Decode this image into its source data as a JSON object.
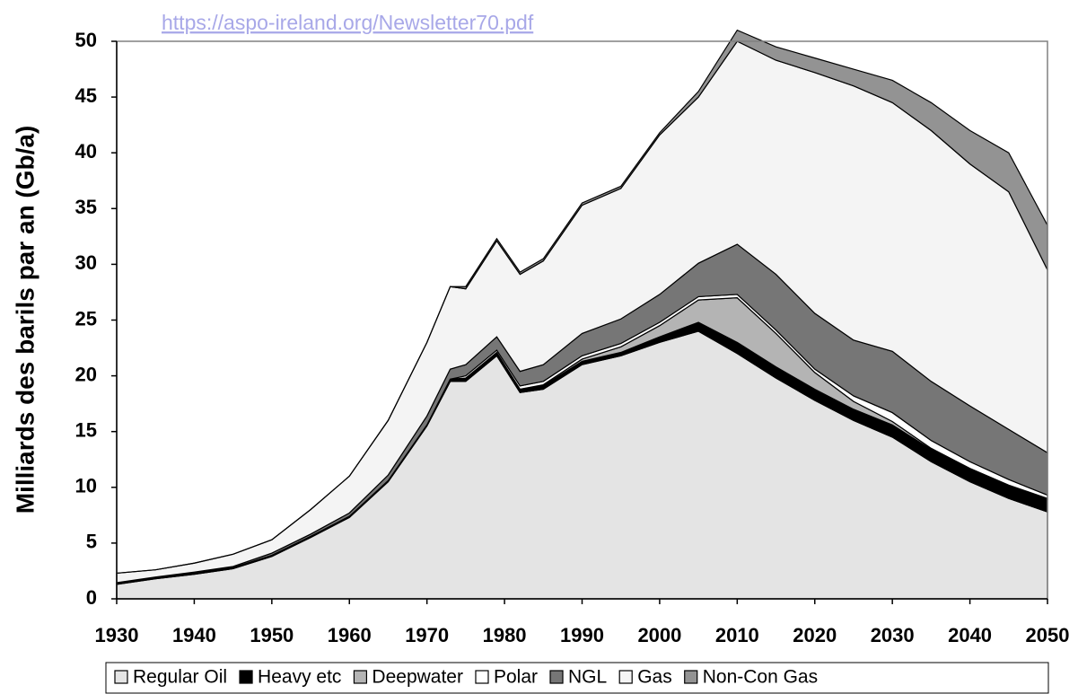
{
  "chart_data": {
    "type": "stacked_area",
    "source_link": "https://aspo-ireland.org/Newsletter70.pdf",
    "ylabel": "Milliards des barils par an (Gb/a)",
    "x": [
      1930,
      1935,
      1940,
      1945,
      1950,
      1955,
      1960,
      1965,
      1970,
      1973,
      1975,
      1979,
      1982,
      1985,
      1990,
      1995,
      2000,
      2005,
      2010,
      2015,
      2020,
      2025,
      2030,
      2035,
      2040,
      2045,
      2050
    ],
    "xlim": [
      1930,
      2050
    ],
    "xticks": [
      1930,
      1940,
      1950,
      1960,
      1970,
      1980,
      1990,
      2000,
      2010,
      2020,
      2030,
      2040,
      2050
    ],
    "ylim": [
      0,
      50
    ],
    "yticks": [
      0,
      5,
      10,
      15,
      20,
      25,
      30,
      35,
      40,
      45,
      50
    ],
    "grid": false,
    "legend": "bottom",
    "series": [
      {
        "name": "Regular Oil",
        "color": "#e4e4e4",
        "values": [
          1.3,
          1.8,
          2.2,
          2.7,
          3.8,
          5.5,
          7.3,
          10.5,
          15.5,
          19.5,
          19.5,
          21.8,
          18.5,
          18.8,
          21,
          21.8,
          23,
          24,
          22,
          19.8,
          17.8,
          16,
          14.5,
          12.3,
          10.5,
          9,
          7.8
        ]
      },
      {
        "name": "Heavy etc",
        "color": "#000000",
        "values": [
          0.1,
          0.1,
          0.1,
          0.1,
          0.1,
          0.1,
          0.1,
          0.1,
          0.1,
          0.2,
          0.3,
          0.3,
          0.3,
          0.3,
          0.3,
          0.3,
          0.5,
          0.8,
          1,
          1,
          1,
          1,
          1.1,
          1.1,
          1.1,
          1.1,
          1.1
        ]
      },
      {
        "name": "Deepwater",
        "color": "#b4b4b4",
        "values": [
          0,
          0,
          0,
          0,
          0,
          0,
          0,
          0,
          0,
          0,
          0,
          0,
          0,
          0.1,
          0.2,
          0.5,
          1,
          2,
          4,
          3,
          1.5,
          0.7,
          0.3,
          0.1,
          0.1,
          0.1,
          0.1
        ]
      },
      {
        "name": "Polar",
        "color": "#ffffff",
        "values": [
          0,
          0,
          0,
          0,
          0,
          0,
          0,
          0,
          0,
          0,
          0.2,
          0.2,
          0.3,
          0.3,
          0.3,
          0.3,
          0.3,
          0.3,
          0.3,
          0.3,
          0.3,
          0.5,
          0.8,
          0.7,
          0.6,
          0.5,
          0.3
        ]
      },
      {
        "name": "NGL",
        "color": "#767676",
        "values": [
          0.05,
          0.05,
          0.1,
          0.1,
          0.2,
          0.2,
          0.3,
          0.5,
          0.8,
          0.9,
          1,
          1.2,
          1.3,
          1.5,
          2,
          2.2,
          2.5,
          3,
          4.5,
          5,
          5,
          5,
          5.5,
          5.3,
          5,
          4.5,
          3.8
        ]
      },
      {
        "name": "Gas",
        "color": "#f4f4f4",
        "values": [
          0.85,
          0.65,
          0.8,
          1.1,
          1.2,
          2.2,
          3.3,
          4.9,
          6.6,
          7.4,
          6.8,
          8.6,
          8.7,
          9.3,
          11.5,
          11.7,
          14.3,
          14.9,
          18.2,
          19.2,
          21.6,
          22.8,
          22.3,
          22.5,
          21.7,
          21.3,
          16.4
        ]
      },
      {
        "name": "Non-Con Gas",
        "color": "#939393",
        "values": [
          0,
          0,
          0,
          0,
          0,
          0,
          0,
          0,
          0,
          0,
          0.2,
          0.2,
          0.2,
          0.2,
          0.2,
          0.2,
          0.2,
          0.5,
          1,
          1.2,
          1.3,
          1.5,
          2,
          2.5,
          3,
          3.5,
          4
        ]
      }
    ]
  }
}
